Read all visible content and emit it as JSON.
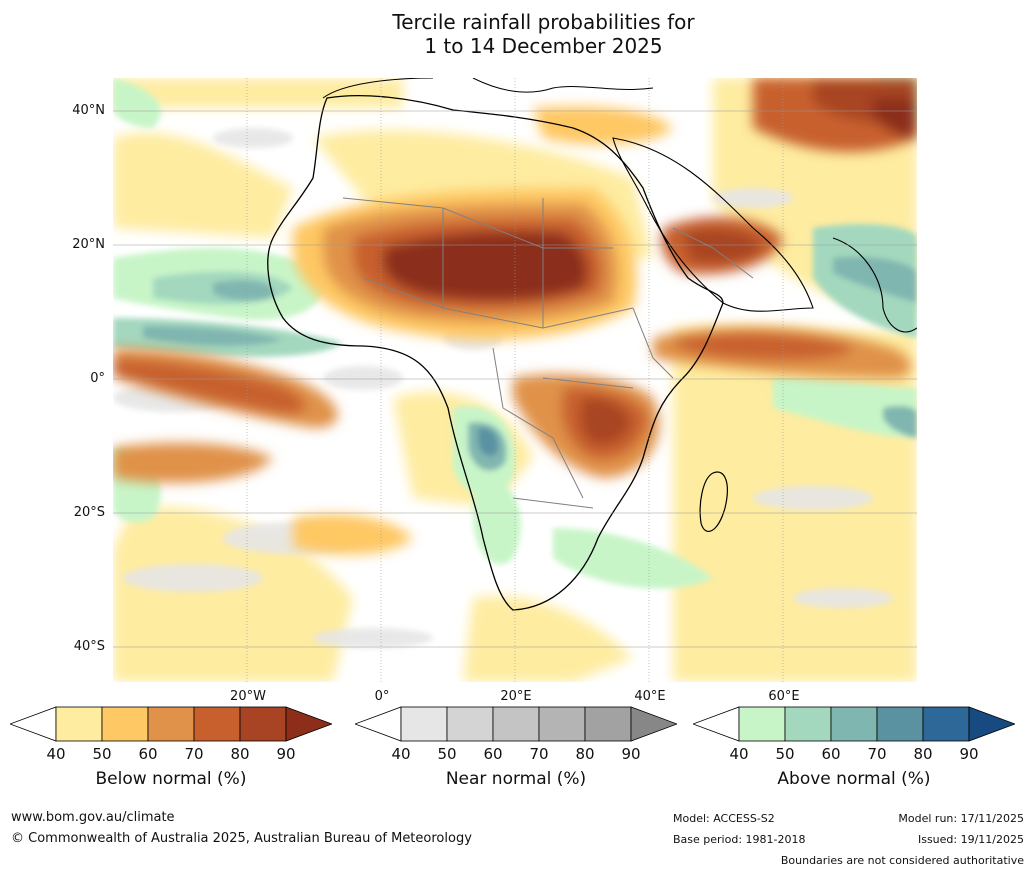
{
  "title": {
    "line1": "Tercile rainfall probabilities for",
    "line2": "1 to 14 December 2025"
  },
  "map": {
    "region": "Africa",
    "lat_labels": [
      "40°N",
      "20°N",
      "0°",
      "20°S",
      "40°S"
    ],
    "lon_labels": [
      "20°W",
      "0°",
      "20°E",
      "40°E",
      "60°E"
    ]
  },
  "legends": [
    {
      "caption": "Below normal (%)",
      "ticks": [
        "40",
        "50",
        "60",
        "70",
        "80",
        "90"
      ],
      "colors": [
        "#ffffff",
        "#feeca0",
        "#fec864",
        "#e0924a",
        "#c8602e",
        "#a84424",
        "#8c2e1a"
      ]
    },
    {
      "caption": "Near normal (%)",
      "ticks": [
        "40",
        "50",
        "60",
        "70",
        "80",
        "90"
      ],
      "colors": [
        "#ffffff",
        "#e6e6e6",
        "#d4d4d4",
        "#c4c4c4",
        "#b4b4b4",
        "#a2a2a2",
        "#878787"
      ]
    },
    {
      "caption": "Above normal (%)",
      "ticks": [
        "40",
        "50",
        "60",
        "70",
        "80",
        "90"
      ],
      "colors": [
        "#ffffff",
        "#c8f5c8",
        "#a3d8be",
        "#80b6b0",
        "#5a92a2",
        "#2e6898",
        "#174a80"
      ]
    }
  ],
  "footer": {
    "url": "www.bom.gov.au/climate",
    "copyright": "© Commonwealth of Australia 2025, Australian Bureau of Meteorology",
    "model": "Model: ACCESS-S2",
    "base_period": "Base period: 1981-2018",
    "model_run": "Model run: 17/11/2025",
    "issued": "Issued: 19/11/2025",
    "disclaimer": "Boundaries are not considered authoritative"
  },
  "colors": {
    "dry": "#8c2e1a",
    "wet": "#2e6898",
    "near": "#c4c4c4"
  }
}
